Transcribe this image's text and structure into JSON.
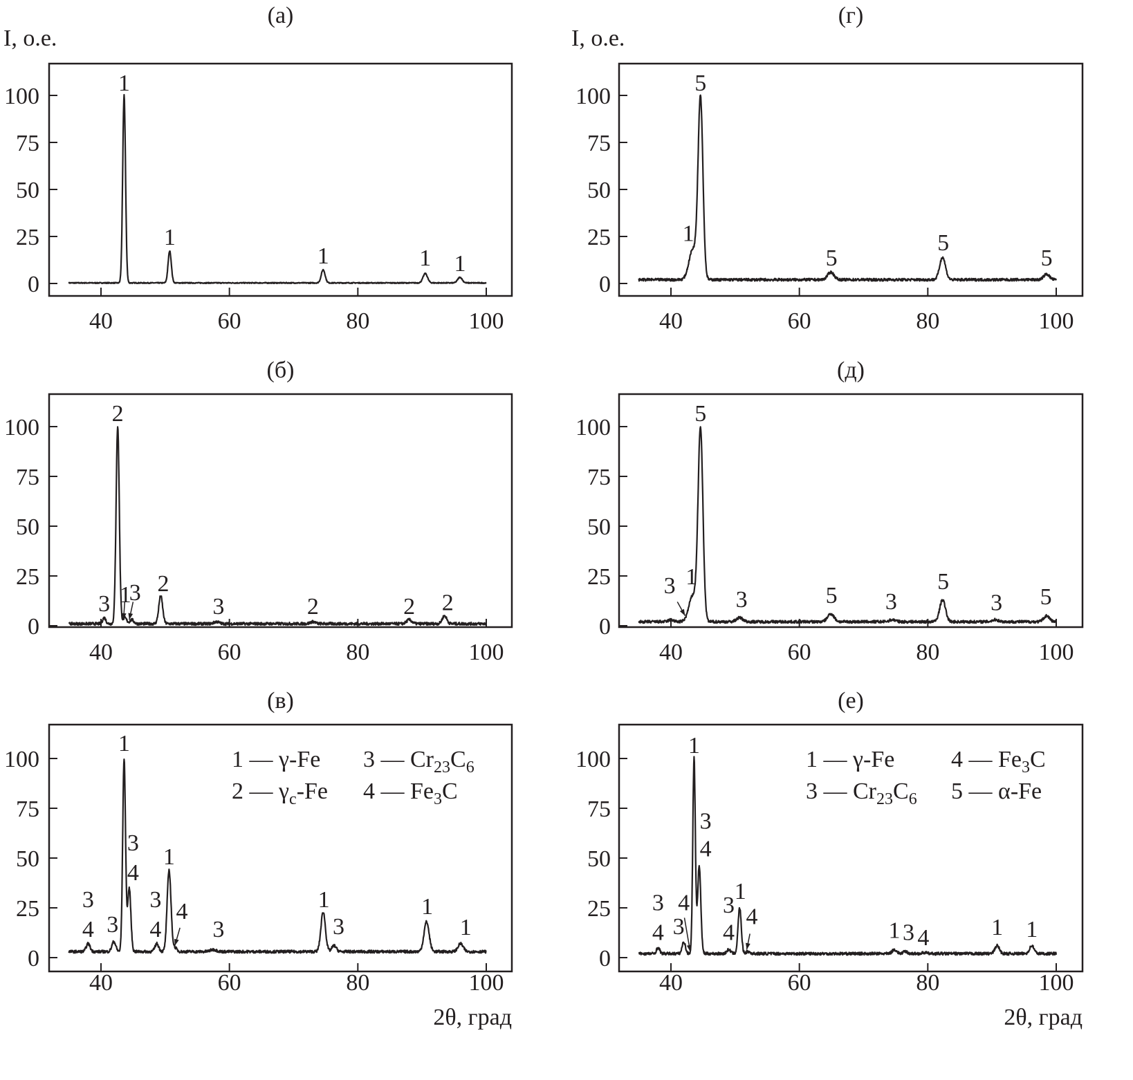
{
  "chart_data": [
    {
      "type": "line",
      "id": "a",
      "title": "(а)",
      "ylabel": "I, о.е.",
      "xlabel": "",
      "xlim": [
        35,
        100
      ],
      "ylim": [
        0,
        100
      ],
      "xticks": [
        40,
        60,
        80,
        100
      ],
      "yticks": [
        0,
        25,
        50,
        75,
        100
      ],
      "baseline": 0.3,
      "peaks": [
        {
          "x": 43.6,
          "h": 100,
          "w": 0.22
        },
        {
          "x": 50.7,
          "h": 17,
          "w": 0.25
        },
        {
          "x": 74.6,
          "h": 7,
          "w": 0.3
        },
        {
          "x": 90.5,
          "h": 5,
          "w": 0.35
        },
        {
          "x": 95.9,
          "h": 3,
          "w": 0.35
        }
      ],
      "labels": [
        {
          "x": 43.6,
          "y": 107,
          "text": "1"
        },
        {
          "x": 50.7,
          "y": 25,
          "text": "1"
        },
        {
          "x": 74.6,
          "y": 15,
          "text": "1"
        },
        {
          "x": 90.5,
          "y": 14,
          "text": "1"
        },
        {
          "x": 95.9,
          "y": 11,
          "text": "1"
        }
      ],
      "arrows": [],
      "legend": []
    },
    {
      "type": "line",
      "id": "b",
      "title": "(б)",
      "ylabel": "",
      "xlabel": "",
      "xlim": [
        35,
        100
      ],
      "ylim": [
        0,
        100
      ],
      "xticks": [
        40,
        60,
        80,
        100
      ],
      "yticks": [
        0,
        25,
        50,
        75,
        100
      ],
      "baseline": 1,
      "peaks": [
        {
          "x": 40.5,
          "h": 3,
          "w": 0.25
        },
        {
          "x": 42.6,
          "h": 99,
          "w": 0.25
        },
        {
          "x": 43.7,
          "h": 3,
          "w": 0.3
        },
        {
          "x": 44.8,
          "h": 2,
          "w": 0.3
        },
        {
          "x": 49.3,
          "h": 14,
          "w": 0.3
        },
        {
          "x": 58,
          "h": 1,
          "w": 0.4
        },
        {
          "x": 73,
          "h": 1,
          "w": 0.4
        },
        {
          "x": 88,
          "h": 2,
          "w": 0.4
        },
        {
          "x": 93.5,
          "h": 4,
          "w": 0.35
        }
      ],
      "labels": [
        {
          "x": 40.5,
          "y": 11.5,
          "text": "3"
        },
        {
          "x": 42.6,
          "y": 107,
          "text": "2"
        },
        {
          "x": 43.8,
          "y": 16,
          "text": "1"
        },
        {
          "x": 45.3,
          "y": 17,
          "text": "3"
        },
        {
          "x": 49.7,
          "y": 21.5,
          "text": "2"
        },
        {
          "x": 58.3,
          "y": 10,
          "text": "3"
        },
        {
          "x": 73,
          "y": 10,
          "text": "2"
        },
        {
          "x": 88,
          "y": 10,
          "text": "2"
        },
        {
          "x": 94,
          "y": 12,
          "text": "2"
        }
      ],
      "arrows": [
        {
          "from": [
            43.7,
            12
          ],
          "to": [
            43.5,
            3
          ]
        },
        {
          "from": [
            45,
            12
          ],
          "to": [
            44.4,
            3
          ]
        }
      ],
      "legend": []
    },
    {
      "type": "line",
      "id": "v",
      "title": "(в)",
      "ylabel": "",
      "xlabel": "2θ, град",
      "xlim": [
        35,
        100
      ],
      "ylim": [
        0,
        100
      ],
      "xticks": [
        40,
        60,
        80,
        100
      ],
      "yticks": [
        0,
        25,
        50,
        75,
        100
      ],
      "baseline": 3,
      "peaks": [
        {
          "x": 38,
          "h": 4,
          "w": 0.3
        },
        {
          "x": 42,
          "h": 5,
          "w": 0.3
        },
        {
          "x": 43.6,
          "h": 97,
          "w": 0.22
        },
        {
          "x": 44.4,
          "h": 32,
          "w": 0.25
        },
        {
          "x": 48.7,
          "h": 4,
          "w": 0.3
        },
        {
          "x": 50.6,
          "h": 41,
          "w": 0.3
        },
        {
          "x": 51.5,
          "h": 2,
          "w": 0.3
        },
        {
          "x": 57.5,
          "h": 1,
          "w": 0.5
        },
        {
          "x": 74.6,
          "h": 20,
          "w": 0.35
        },
        {
          "x": 76.3,
          "h": 3,
          "w": 0.35
        },
        {
          "x": 90.7,
          "h": 15,
          "w": 0.4
        },
        {
          "x": 96,
          "h": 4,
          "w": 0.4
        }
      ],
      "labels": [
        {
          "x": 43.6,
          "y": 108,
          "text": "1"
        },
        {
          "x": 45,
          "y": 58,
          "text": "3"
        },
        {
          "x": 45,
          "y": 43,
          "text": "4"
        },
        {
          "x": 50.6,
          "y": 51,
          "text": "1"
        },
        {
          "x": 38,
          "y": 29.5,
          "text": "3"
        },
        {
          "x": 38,
          "y": 14.6,
          "text": "4"
        },
        {
          "x": 41.8,
          "y": 17,
          "text": "3"
        },
        {
          "x": 48.5,
          "y": 29.5,
          "text": "3"
        },
        {
          "x": 48.5,
          "y": 14.6,
          "text": "4"
        },
        {
          "x": 52.6,
          "y": 23.6,
          "text": "4"
        },
        {
          "x": 58.3,
          "y": 14.6,
          "text": "3"
        },
        {
          "x": 74.7,
          "y": 29.5,
          "text": "1"
        },
        {
          "x": 77,
          "y": 16,
          "text": "3"
        },
        {
          "x": 90.8,
          "y": 26,
          "text": "1"
        },
        {
          "x": 96.8,
          "y": 15.6,
          "text": "1"
        }
      ],
      "arrows": [
        {
          "from": [
            52.3,
            15
          ],
          "to": [
            51.5,
            6
          ]
        }
      ],
      "legend": [
        [
          {
            "t": "1 — γ-Fe"
          }
        ],
        [
          {
            "t": "3 — Cr"
          },
          {
            "t": "23",
            "sub": true
          },
          {
            "t": "C"
          },
          {
            "t": "6",
            "sub": true
          }
        ],
        [
          {
            "t": "2 — γ"
          },
          {
            "t": "c",
            "sub": true
          },
          {
            "t": "-Fe"
          }
        ],
        [
          {
            "t": "4 — Fe"
          },
          {
            "t": "3",
            "sub": true
          },
          {
            "t": "C"
          }
        ]
      ]
    },
    {
      "type": "line",
      "id": "g",
      "title": "(г)",
      "ylabel": "I, о.е.",
      "xlabel": "",
      "xlim": [
        35,
        100
      ],
      "ylim": [
        0,
        100
      ],
      "xticks": [
        40,
        60,
        80,
        100
      ],
      "yticks": [
        0,
        25,
        50,
        75,
        100
      ],
      "baseline": 2,
      "peaks": [
        {
          "x": 43.4,
          "h": 16,
          "w": 0.6
        },
        {
          "x": 44.6,
          "h": 96,
          "w": 0.38
        },
        {
          "x": 64.9,
          "h": 4,
          "w": 0.5
        },
        {
          "x": 82.3,
          "h": 12,
          "w": 0.45
        },
        {
          "x": 98.5,
          "h": 3,
          "w": 0.45
        }
      ],
      "labels": [
        {
          "x": 44.6,
          "y": 107,
          "text": "5"
        },
        {
          "x": 42.7,
          "y": 27,
          "text": "1"
        },
        {
          "x": 65,
          "y": 14,
          "text": "5"
        },
        {
          "x": 82.4,
          "y": 22,
          "text": "5"
        },
        {
          "x": 98.5,
          "y": 14,
          "text": "5"
        }
      ],
      "arrows": [],
      "legend": []
    },
    {
      "type": "line",
      "id": "d",
      "title": "(д)",
      "ylabel": "",
      "xlabel": "",
      "xlim": [
        35,
        100
      ],
      "ylim": [
        0,
        100
      ],
      "xticks": [
        40,
        60,
        80,
        100
      ],
      "yticks": [
        0,
        25,
        50,
        75,
        100
      ],
      "baseline": 2,
      "peaks": [
        {
          "x": 40,
          "h": 1,
          "w": 0.4
        },
        {
          "x": 43.4,
          "h": 13,
          "w": 0.6
        },
        {
          "x": 44.6,
          "h": 96,
          "w": 0.38
        },
        {
          "x": 50.7,
          "h": 2,
          "w": 0.5
        },
        {
          "x": 64.9,
          "h": 4,
          "w": 0.5
        },
        {
          "x": 74.5,
          "h": 1,
          "w": 0.5
        },
        {
          "x": 82.3,
          "h": 11,
          "w": 0.45
        },
        {
          "x": 90.5,
          "h": 1,
          "w": 0.5
        },
        {
          "x": 98.5,
          "h": 3,
          "w": 0.45
        }
      ],
      "labels": [
        {
          "x": 44.6,
          "y": 107,
          "text": "5"
        },
        {
          "x": 43.2,
          "y": 25,
          "text": "1"
        },
        {
          "x": 39.8,
          "y": 20.5,
          "text": "3"
        },
        {
          "x": 51,
          "y": 13.5,
          "text": "3"
        },
        {
          "x": 65,
          "y": 15.6,
          "text": "5"
        },
        {
          "x": 74.3,
          "y": 12.5,
          "text": "3"
        },
        {
          "x": 82.4,
          "y": 22.5,
          "text": "5"
        },
        {
          "x": 90.7,
          "y": 12,
          "text": "3"
        },
        {
          "x": 98.4,
          "y": 15,
          "text": "5"
        }
      ],
      "arrows": [
        {
          "from": [
            41,
            12
          ],
          "to": [
            42.2,
            5
          ]
        }
      ],
      "legend": []
    },
    {
      "type": "line",
      "id": "e",
      "title": "(е)",
      "ylabel": "",
      "xlabel": "2θ, град",
      "xlim": [
        35,
        100
      ],
      "ylim": [
        0,
        100
      ],
      "xticks": [
        40,
        60,
        80,
        100
      ],
      "yticks": [
        0,
        25,
        50,
        75,
        100
      ],
      "baseline": 2,
      "peaks": [
        {
          "x": 38,
          "h": 3,
          "w": 0.25
        },
        {
          "x": 42,
          "h": 6,
          "w": 0.25
        },
        {
          "x": 43.6,
          "h": 98,
          "w": 0.2
        },
        {
          "x": 44.4,
          "h": 44,
          "w": 0.25
        },
        {
          "x": 49,
          "h": 2,
          "w": 0.3
        },
        {
          "x": 50.7,
          "h": 23,
          "w": 0.25
        },
        {
          "x": 52,
          "h": 1,
          "w": 0.3
        },
        {
          "x": 74.8,
          "h": 2,
          "w": 0.35
        },
        {
          "x": 76.5,
          "h": 1,
          "w": 0.35
        },
        {
          "x": 79.5,
          "h": 0.5,
          "w": 0.35
        },
        {
          "x": 90.8,
          "h": 4,
          "w": 0.35
        },
        {
          "x": 96.2,
          "h": 4,
          "w": 0.35
        }
      ],
      "labels": [
        {
          "x": 43.6,
          "y": 107,
          "text": "1"
        },
        {
          "x": 45.4,
          "y": 69,
          "text": "3"
        },
        {
          "x": 45.4,
          "y": 55,
          "text": "4"
        },
        {
          "x": 42,
          "y": 28,
          "text": "4"
        },
        {
          "x": 38,
          "y": 28,
          "text": "3"
        },
        {
          "x": 38,
          "y": 13,
          "text": "4"
        },
        {
          "x": 41.2,
          "y": 16,
          "text": "3"
        },
        {
          "x": 49,
          "y": 26.7,
          "text": "3"
        },
        {
          "x": 49,
          "y": 13,
          "text": "4"
        },
        {
          "x": 50.8,
          "y": 33.7,
          "text": "1"
        },
        {
          "x": 52.6,
          "y": 21,
          "text": "4"
        },
        {
          "x": 74.8,
          "y": 14,
          "text": "1"
        },
        {
          "x": 77,
          "y": 13,
          "text": "3"
        },
        {
          "x": 79.3,
          "y": 10.4,
          "text": "4"
        },
        {
          "x": 90.8,
          "y": 15.6,
          "text": "1"
        },
        {
          "x": 96.2,
          "y": 14.6,
          "text": "1"
        }
      ],
      "arrows": [
        {
          "from": [
            42.1,
            20
          ],
          "to": [
            43,
            3
          ]
        },
        {
          "from": [
            52.3,
            12
          ],
          "to": [
            51.8,
            4
          ]
        }
      ],
      "legend": [
        [
          {
            "t": "1 — γ-Fe"
          }
        ],
        [
          {
            "t": "4 — Fe"
          },
          {
            "t": "3",
            "sub": true
          },
          {
            "t": "C"
          }
        ],
        [
          {
            "t": "3 — Cr"
          },
          {
            "t": "23",
            "sub": true
          },
          {
            "t": "C"
          },
          {
            "t": "6",
            "sub": true
          }
        ],
        [
          {
            "t": "5 — α-Fe"
          }
        ]
      ]
    }
  ]
}
